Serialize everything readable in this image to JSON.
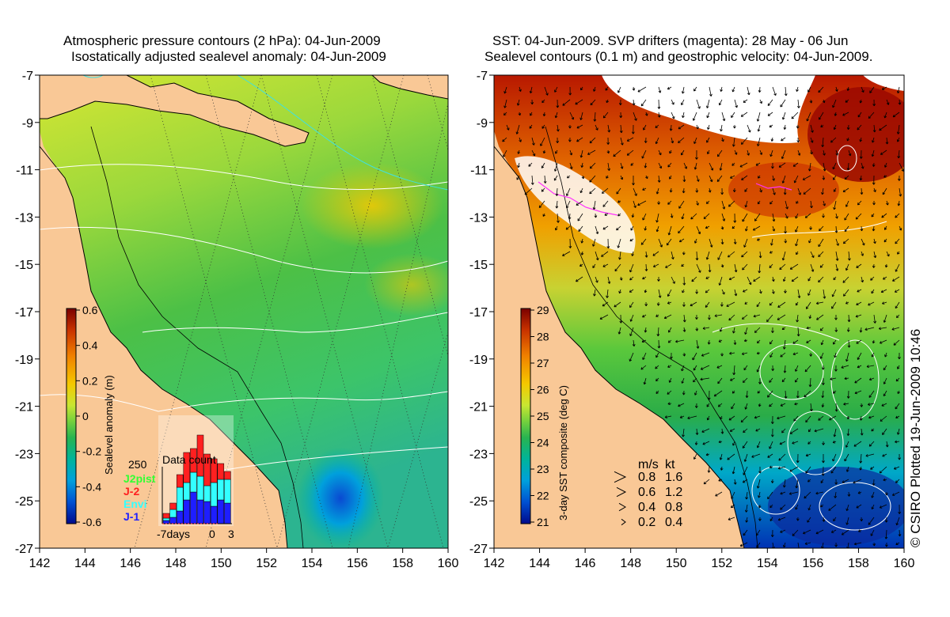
{
  "left_panel": {
    "title_line1": "Atmospheric pressure contours (2 hPa): 04-Jun-2009",
    "title_line2": "Isostatically adjusted sealevel anomaly: 04-Jun-2009",
    "y_ticks": [
      "-7",
      "-9",
      "-11",
      "-13",
      "-15",
      "-17",
      "-19",
      "-21",
      "-23",
      "-25",
      "-27"
    ],
    "x_ticks": [
      "142",
      "144",
      "146",
      "148",
      "150",
      "152",
      "154",
      "156",
      "158",
      "160"
    ],
    "colorbar": {
      "label": "Sealevel anomaly (m)",
      "ticks": [
        "0.6",
        "0.4",
        "0.2",
        "0",
        "-0.2",
        "-0.4",
        "-0.6"
      ],
      "colors": [
        "#7a0000",
        "#c83200",
        "#f08000",
        "#f5c800",
        "#c8e632",
        "#7ad23c",
        "#28b450",
        "#00b49a",
        "#00a0dc",
        "#0050d2",
        "#000a8c"
      ]
    },
    "inset": {
      "title": "Data count",
      "max_label": "250",
      "legend": [
        {
          "label": "J2pist",
          "color": "#33ff33"
        },
        {
          "label": "J-2",
          "color": "#ff2020"
        },
        {
          "label": "Envi",
          "color": "#33ffff"
        },
        {
          "label": "J-1",
          "color": "#1e1eff"
        }
      ],
      "x_label_left": "-7days",
      "x_label_mid": "0",
      "x_label_right": "3"
    }
  },
  "right_panel": {
    "title_line1": "SST: 04-Jun-2009. SVP drifters (magenta): 28 May - 06 Jun",
    "title_line2": "Sealevel contours (0.1 m) and geostrophic velocity: 04-Jun-2009.",
    "y_ticks": [
      "-7",
      "-9",
      "-11",
      "-13",
      "-15",
      "-17",
      "-19",
      "-21",
      "-23",
      "-25",
      "-27"
    ],
    "x_ticks": [
      "142",
      "144",
      "146",
      "148",
      "150",
      "152",
      "154",
      "156",
      "158",
      "160"
    ],
    "colorbar": {
      "label": "3-day SST composite (deg C)",
      "ticks": [
        "29",
        "28",
        "27",
        "26",
        "25",
        "24",
        "23",
        "22",
        "21"
      ],
      "colors": [
        "#7a0000",
        "#c83200",
        "#f08000",
        "#f5c800",
        "#c8e632",
        "#7ad23c",
        "#28b450",
        "#00b49a",
        "#00a0dc",
        "#0050d2",
        "#000a8c"
      ]
    },
    "velocity_legend": {
      "header_ms": "m/s",
      "header_kt": "kt",
      "rows": [
        {
          "ms": "0.8",
          "kt": "1.6"
        },
        {
          "ms": "0.6",
          "kt": "1.2"
        },
        {
          "ms": "0.4",
          "kt": "0.8"
        },
        {
          "ms": "0.2",
          "kt": "0.4"
        }
      ]
    }
  },
  "credit": "© CSIRO Plotted 19-Jun-2009 10:46",
  "colors": {
    "land": "#f9c896",
    "coast": "#000000",
    "contour_white": "#ffffff",
    "cyan_contour": "#40e0e0"
  }
}
